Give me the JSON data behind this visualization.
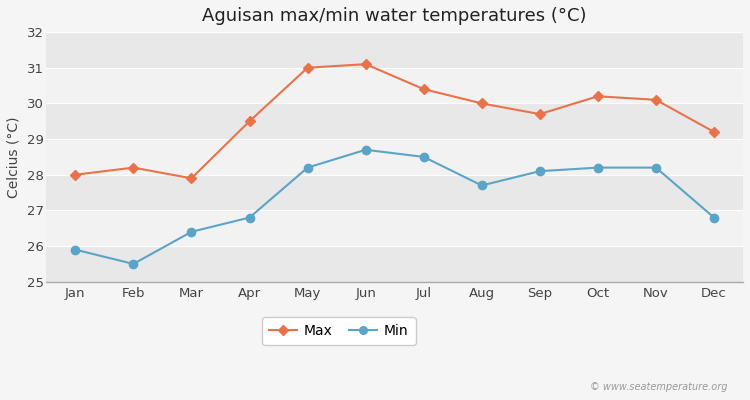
{
  "title": "Aguisan max/min water temperatures (°C)",
  "ylabel": "Celcius (°C)",
  "months": [
    "Jan",
    "Feb",
    "Mar",
    "Apr",
    "May",
    "Jun",
    "Jul",
    "Aug",
    "Sep",
    "Oct",
    "Nov",
    "Dec"
  ],
  "max_temps": [
    28.0,
    28.2,
    27.9,
    29.5,
    31.0,
    31.1,
    30.4,
    30.0,
    29.7,
    30.2,
    30.1,
    29.2
  ],
  "min_temps": [
    25.9,
    25.5,
    26.4,
    26.8,
    28.2,
    28.7,
    28.5,
    27.7,
    28.1,
    28.2,
    28.2,
    26.8
  ],
  "max_color": "#E8734A",
  "min_color": "#5BA4C8",
  "bg_color": "#f5f5f5",
  "band_colors": [
    "#e8e8e8",
    "#f2f2f2"
  ],
  "ylim": [
    25,
    32
  ],
  "yticks": [
    25,
    26,
    27,
    28,
    29,
    30,
    31,
    32
  ],
  "grid_color": "#ffffff",
  "legend_labels": [
    "Max",
    "Min"
  ],
  "watermark": "© www.seatemperature.org",
  "title_fontsize": 13,
  "axis_fontsize": 10,
  "tick_fontsize": 9.5,
  "spine_color": "#aaaaaa"
}
